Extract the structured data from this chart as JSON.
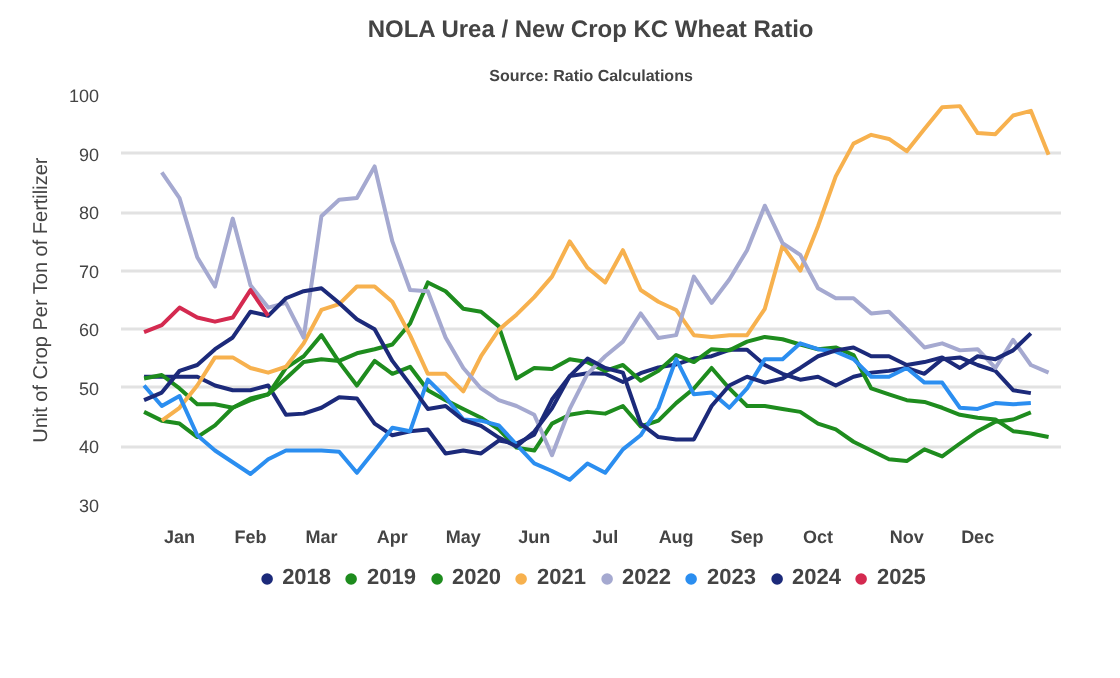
{
  "chart_data": {
    "type": "line",
    "title": "NOLA Urea / New Crop KC Wheat Ratio",
    "subtitle": "Source: Ratio Calculations",
    "ylabel": "Unit of Crop Per Ton of Fertilizer",
    "categories": [
      null,
      null,
      "Jan",
      null,
      null,
      null,
      "Feb",
      null,
      null,
      null,
      "Mar",
      null,
      null,
      null,
      "Apr",
      null,
      null,
      null,
      "May",
      null,
      null,
      null,
      "Jun",
      null,
      null,
      null,
      "Jul",
      null,
      null,
      null,
      "Aug",
      null,
      null,
      null,
      "Sep",
      null,
      null,
      null,
      "Oct",
      null,
      null,
      null,
      null,
      "Nov",
      null,
      null,
      null,
      "Dec",
      null,
      null,
      null,
      null
    ],
    "ylim": [
      30,
      100
    ],
    "yticks": [
      30,
      40,
      50,
      60,
      70,
      80,
      90,
      100
    ],
    "grid": "y",
    "legend": "bottom",
    "line_style": "solid",
    "series": [
      {
        "name": "2018",
        "color": "#1c2a7a",
        "values": [
          51.9,
          51.9,
          51.9,
          51.9,
          50.4,
          49.6,
          49.6,
          50.4,
          45.4,
          45.6,
          46.6,
          48.4,
          48.2,
          43.9,
          41.9,
          42.6,
          42.9,
          38.8,
          39.3,
          38.8,
          41,
          40.5,
          42,
          48,
          52,
          52.5,
          52.4,
          51,
          52.5,
          53.5,
          54,
          55,
          55.4,
          56.5,
          56.5,
          53.9,
          52.4,
          51.4,
          51.9,
          50.4,
          51.9,
          52.6,
          52.9,
          53.4,
          52.4,
          54.9,
          55.2,
          53.9,
          52.9,
          49.6,
          49.1,
          null
        ]
      },
      {
        "name": "2019",
        "color": "#1e8c1e",
        "values": [
          51.6,
          52.2,
          49.9,
          47.2,
          47.2,
          46.6,
          48.2,
          48.9,
          53.4,
          55.4,
          59,
          54.4,
          50.4,
          54.6,
          52.4,
          53.6,
          49.6,
          47.9,
          46.4,
          44.9,
          42.9,
          39.8,
          39.3,
          43.9,
          45.4,
          45.9,
          45.6,
          46.9,
          43.4,
          44.4,
          47.4,
          49.9,
          53.4,
          49.9,
          46.9,
          46.9,
          46.4,
          45.9,
          43.9,
          42.9,
          40.8,
          39.3,
          37.8,
          37.5,
          39.5,
          38.3,
          40.5,
          42.6,
          44.2,
          44.6,
          45.8,
          null
        ]
      },
      {
        "name": "2020",
        "color": "#1e8c1e",
        "values": [
          45.9,
          44.4,
          43.9,
          41.6,
          43.6,
          46.6,
          47.9,
          48.9,
          51.6,
          54.4,
          54.9,
          54.6,
          55.9,
          56.6,
          57.4,
          61,
          68,
          66.5,
          63.5,
          63,
          60.5,
          51.6,
          53.4,
          53.2,
          54.9,
          54.4,
          52.9,
          53.9,
          51.2,
          52.9,
          55.6,
          54.4,
          56.6,
          56.4,
          57.9,
          58.7,
          58.3,
          57.4,
          56.6,
          56.9,
          55.6,
          49.9,
          48.9,
          47.9,
          47.6,
          46.6,
          45.4,
          44.9,
          44.6,
          42.6,
          42.2,
          41.6
        ]
      },
      {
        "name": "2021",
        "color": "#f7b14e",
        "values": [
          null,
          44.4,
          46.6,
          50.4,
          55.2,
          55.2,
          53.4,
          52.6,
          53.6,
          57.6,
          63.3,
          64.3,
          67.3,
          67.3,
          64.7,
          59,
          52.4,
          52.4,
          49.4,
          55.4,
          59.9,
          62.5,
          65.5,
          69,
          75,
          70.5,
          68,
          73.5,
          66.7,
          64.7,
          63.3,
          59,
          58.7,
          59,
          59,
          63.5,
          74.3,
          70,
          77.6,
          86.1,
          91.7,
          93.2,
          92.5,
          90.4,
          94.2,
          97.9,
          98.1,
          93.5,
          93.3,
          96.5,
          97.3,
          89.8
        ]
      },
      {
        "name": "2022",
        "color": "#a5a9d0",
        "values": [
          null,
          86.8,
          82.4,
          72.3,
          67.3,
          78.9,
          67.5,
          63.7,
          64.5,
          58.6,
          79.3,
          82.1,
          82.4,
          87.8,
          75,
          66.7,
          66.5,
          58.6,
          53.4,
          49.9,
          47.9,
          46.9,
          45.4,
          38.5,
          46.4,
          52.4,
          55.4,
          57.9,
          62.7,
          58.5,
          59,
          69,
          64.5,
          68.5,
          73.5,
          81.1,
          74.7,
          72.7,
          67,
          65.3,
          65.3,
          62.7,
          63,
          60,
          56.9,
          57.6,
          56.4,
          56.6,
          53.4,
          58.2,
          53.9,
          52.6
        ]
      },
      {
        "name": "2023",
        "color": "#2b8ef0",
        "values": [
          50.4,
          46.9,
          48.6,
          41.9,
          39.3,
          37.3,
          35.3,
          37.8,
          39.3,
          39.3,
          39.3,
          39.1,
          35.5,
          39.3,
          43.2,
          42.6,
          51.4,
          48.4,
          44.6,
          44.4,
          43.6,
          40.3,
          37.1,
          35.8,
          34.3,
          37.1,
          35.5,
          39.5,
          41.9,
          46.6,
          54.9,
          48.9,
          49.2,
          46.6,
          49.9,
          54.9,
          54.9,
          57.6,
          56.6,
          56.2,
          54.9,
          51.9,
          51.9,
          53.4,
          50.9,
          50.9,
          46.6,
          46.4,
          47.4,
          47.2,
          47.4,
          null
        ]
      },
      {
        "name": "2024",
        "color": "#1c2a7a",
        "values": [
          47.9,
          49.2,
          52.9,
          53.9,
          56.6,
          58.6,
          63,
          62.3,
          65.3,
          66.5,
          67,
          64.5,
          61.7,
          60,
          54.6,
          50.6,
          46.4,
          46.9,
          44.5,
          43.5,
          41.5,
          40,
          42.5,
          46.5,
          52,
          55,
          53.4,
          52.6,
          43.9,
          41.6,
          41.2,
          41.2,
          46.9,
          50.4,
          51.9,
          50.9,
          51.6,
          53.4,
          55.4,
          56.4,
          56.9,
          55.4,
          55.4,
          53.9,
          54.4,
          55.2,
          53.4,
          55.4,
          54.9,
          56.4,
          59.3,
          null
        ]
      },
      {
        "name": "2025",
        "color": "#d42a50",
        "values": [
          59.5,
          60.7,
          63.7,
          62,
          61.3,
          62,
          66.7,
          62.3,
          null,
          null,
          null,
          null,
          null,
          null,
          null,
          null,
          null,
          null,
          null,
          null,
          null,
          null,
          null,
          null,
          null,
          null,
          null,
          null,
          null,
          null,
          null,
          null,
          null,
          null,
          null,
          null,
          null,
          null,
          null,
          null,
          null,
          null,
          null,
          null,
          null,
          null,
          null,
          null,
          null,
          null,
          null,
          null
        ]
      }
    ]
  }
}
